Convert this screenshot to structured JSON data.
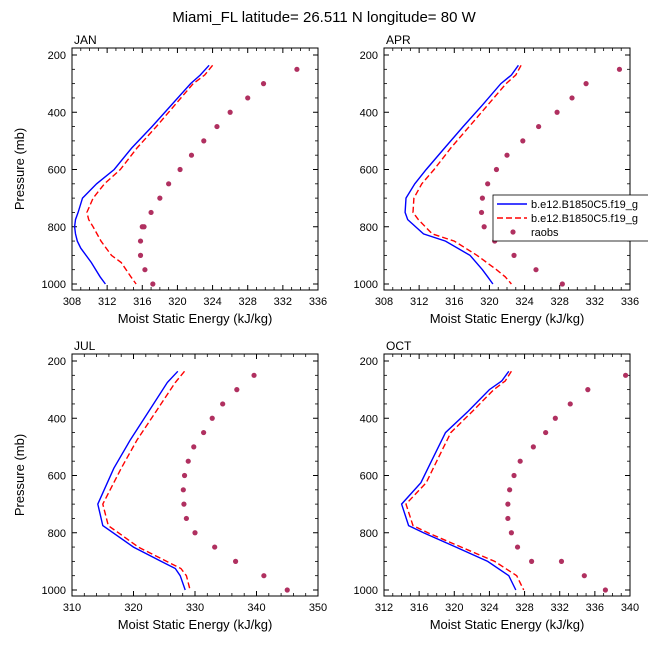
{
  "title": "Miami_FL  latitude= 26.511 N longitude= 80 W",
  "legend": {
    "entries": [
      {
        "label": "b.e12.B1850C5.f19_g",
        "color": "#0000ff",
        "style": "solid"
      },
      {
        "label": "b.e12.B1850C5.f19_g",
        "color": "#ff0000",
        "style": "dashed"
      },
      {
        "label": "raobs",
        "color": "#b03060",
        "style": "marker"
      }
    ]
  },
  "chart_data": [
    {
      "type": "line",
      "title": "JAN",
      "xlabel": "Moist Static Energy (kJ/kg)",
      "ylabel": "Pressure (mb)",
      "xlim": [
        308,
        336
      ],
      "xticks": [
        308,
        312,
        316,
        320,
        324,
        328,
        332,
        336
      ],
      "ylim": [
        200,
        1025
      ],
      "yticks": [
        200,
        400,
        600,
        800,
        1000
      ],
      "y_inverted": true,
      "series": [
        {
          "name": "b.e12.B1850C5.f19_g",
          "color": "#0000ff",
          "style": "solid",
          "x": [
            323.6,
            322.6,
            321.5,
            319.3,
            317.1,
            314.8,
            312.8,
            310.8,
            309.2,
            308.7,
            308.4,
            308.3,
            308.4,
            308.6,
            309.0,
            310.2,
            311.2,
            311.8
          ],
          "y": [
            236,
            270,
            300,
            375,
            450,
            525,
            600,
            650,
            700,
            750,
            775,
            800,
            825,
            850,
            875,
            925,
            975,
            1000
          ]
        },
        {
          "name": "b.e12.B1850C5.f19_g",
          "color": "#ff0000",
          "style": "dashed",
          "x": [
            324.0,
            323.1,
            321.8,
            319.7,
            317.6,
            315.4,
            313.5,
            311.7,
            310.4,
            309.7,
            309.9,
            310.4,
            311.3,
            312.5,
            313.6,
            314.7,
            315.3
          ],
          "y": [
            236,
            270,
            300,
            375,
            450,
            525,
            600,
            650,
            700,
            750,
            775,
            800,
            850,
            900,
            925,
            975,
            1000
          ]
        }
      ],
      "points": {
        "name": "raobs",
        "color": "#b03060",
        "x": [
          333.6,
          329.8,
          328.0,
          326.0,
          324.5,
          323.0,
          321.6,
          320.3,
          319.0,
          318.0,
          317.0,
          316.2,
          315.8,
          315.8,
          316.3,
          317.2,
          316.0
        ],
        "y": [
          250,
          300,
          350,
          400,
          450,
          500,
          550,
          600,
          650,
          700,
          750,
          800,
          850,
          900,
          950,
          1000,
          800
        ]
      }
    },
    {
      "type": "line",
      "title": "APR",
      "xlabel": "Moist Static Energy (kJ/kg)",
      "ylabel": "",
      "xlim": [
        308,
        336
      ],
      "xticks": [
        308,
        312,
        316,
        320,
        324,
        328,
        332,
        336
      ],
      "ylim": [
        200,
        1025
      ],
      "yticks": [
        200,
        400,
        600,
        800,
        1000
      ],
      "y_inverted": true,
      "series": [
        {
          "name": "b.e12.B1850C5.f19_g",
          "color": "#0000ff",
          "style": "solid",
          "x": [
            323.3,
            322.5,
            321.3,
            319.2,
            317.0,
            314.9,
            312.8,
            311.5,
            310.5,
            310.4,
            310.7,
            312.5,
            315.0,
            317.8,
            319.2,
            319.8,
            320.4
          ],
          "y": [
            236,
            270,
            300,
            375,
            450,
            525,
            600,
            650,
            700,
            750,
            775,
            825,
            850,
            900,
            950,
            975,
            1000
          ]
        },
        {
          "name": "b.e12.B1850C5.f19_g",
          "color": "#ff0000",
          "style": "dashed",
          "x": [
            323.6,
            323.0,
            321.9,
            319.8,
            317.7,
            315.6,
            313.7,
            312.3,
            311.4,
            311.3,
            311.9,
            313.5,
            316.0,
            318.6,
            320.8,
            321.8,
            322.5
          ],
          "y": [
            236,
            270,
            300,
            375,
            450,
            525,
            600,
            650,
            700,
            750,
            775,
            825,
            850,
            900,
            950,
            975,
            1000
          ]
        }
      ],
      "points": {
        "name": "raobs",
        "color": "#b03060",
        "x": [
          334.8,
          331.0,
          329.4,
          327.7,
          325.6,
          323.8,
          322.0,
          320.8,
          319.8,
          319.2,
          319.1,
          319.4,
          320.6,
          322.8,
          325.3,
          328.3
        ],
        "y": [
          250,
          300,
          350,
          400,
          450,
          500,
          550,
          600,
          650,
          700,
          750,
          800,
          850,
          900,
          950,
          1000
        ]
      }
    },
    {
      "type": "line",
      "title": "JUL",
      "xlabel": "Moist Static Energy (kJ/kg)",
      "ylabel": "Pressure (mb)",
      "xlim": [
        310,
        350
      ],
      "xticks": [
        310,
        320,
        330,
        340,
        350
      ],
      "ylim": [
        200,
        1025
      ],
      "yticks": [
        200,
        400,
        600,
        800,
        1000
      ],
      "y_inverted": true,
      "series": [
        {
          "name": "b.e12.B1850C5.f19_g",
          "color": "#0000ff",
          "style": "solid",
          "x": [
            327.2,
            325.5,
            322.5,
            319.5,
            316.8,
            314.2,
            315.0,
            320.0,
            324.5,
            326.8,
            327.6,
            328.4
          ],
          "y": [
            236,
            275,
            375,
            475,
            575,
            700,
            775,
            850,
            900,
            925,
            950,
            1000
          ]
        },
        {
          "name": "b.e12.B1850C5.f19_g",
          "color": "#ff0000",
          "style": "dashed",
          "x": [
            328.3,
            326.8,
            323.7,
            320.6,
            318.0,
            315.0,
            315.9,
            320.8,
            325.4,
            327.7,
            328.6,
            329.2
          ],
          "y": [
            236,
            275,
            375,
            475,
            575,
            700,
            775,
            850,
            900,
            925,
            950,
            1000
          ]
        }
      ],
      "points": {
        "name": "raobs",
        "color": "#b03060",
        "x": [
          339.6,
          336.8,
          334.5,
          332.8,
          331.4,
          329.8,
          328.9,
          328.3,
          328.1,
          328.2,
          328.6,
          330.0,
          333.2,
          336.6,
          341.2,
          345.0
        ],
        "y": [
          250,
          300,
          350,
          400,
          450,
          500,
          550,
          600,
          650,
          700,
          750,
          800,
          850,
          900,
          950,
          1000
        ]
      }
    },
    {
      "type": "line",
      "title": "OCT",
      "xlabel": "Moist Static Energy (kJ/kg)",
      "ylabel": "",
      "xlim": [
        312,
        340
      ],
      "xticks": [
        312,
        316,
        320,
        324,
        328,
        332,
        336,
        340
      ],
      "ylim": [
        200,
        1025
      ],
      "yticks": [
        200,
        400,
        600,
        800,
        1000
      ],
      "y_inverted": true,
      "series": [
        {
          "name": "b.e12.B1850C5.f19_g",
          "color": "#0000ff",
          "style": "solid",
          "x": [
            326.2,
            325.4,
            324.0,
            321.6,
            319.0,
            317.4,
            316.2,
            314.0,
            314.8,
            316.5,
            320.2,
            323.8,
            326.2,
            327.0
          ],
          "y": [
            236,
            270,
            300,
            375,
            450,
            550,
            625,
            700,
            775,
            800,
            850,
            900,
            950,
            1000
          ]
        },
        {
          "name": "b.e12.B1850C5.f19_g",
          "color": "#ff0000",
          "style": "dashed",
          "x": [
            326.5,
            325.8,
            324.5,
            322.1,
            319.6,
            318.0,
            316.8,
            314.5,
            315.3,
            317.0,
            320.8,
            324.6,
            327.1,
            327.9
          ],
          "y": [
            236,
            270,
            300,
            375,
            450,
            550,
            625,
            700,
            775,
            800,
            850,
            900,
            950,
            1000
          ]
        }
      ],
      "points": {
        "name": "raobs",
        "color": "#b03060",
        "x": [
          339.5,
          335.2,
          333.2,
          331.5,
          330.4,
          329.0,
          327.5,
          326.8,
          326.3,
          326.1,
          326.1,
          326.5,
          327.2,
          328.8,
          332.2,
          334.8,
          337.2
        ],
        "y": [
          250,
          300,
          350,
          400,
          450,
          500,
          550,
          600,
          650,
          700,
          750,
          800,
          850,
          900,
          900,
          950,
          1000
        ]
      }
    }
  ]
}
